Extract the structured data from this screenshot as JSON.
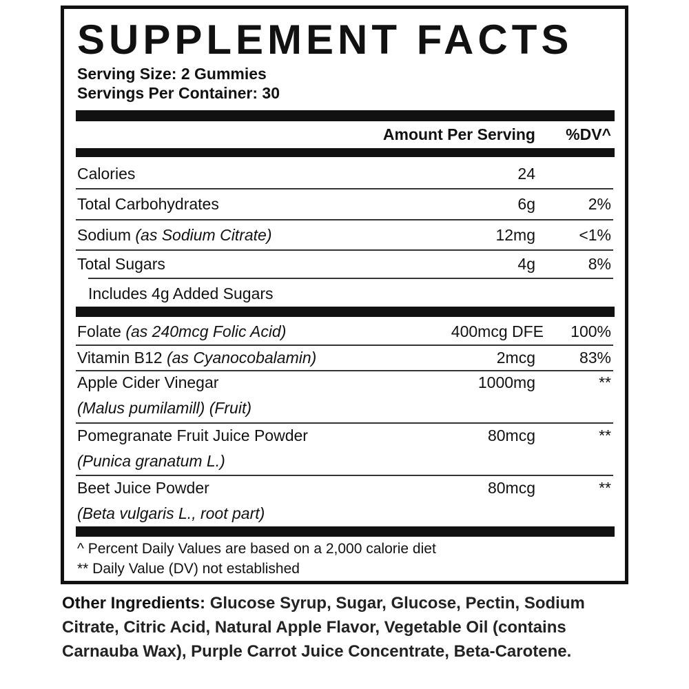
{
  "title": "SUPPLEMENT FACTS",
  "serving_size": "Serving Size: 2 Gummies",
  "servings_per_container": "Servings Per Container: 30",
  "header": {
    "amount": "Amount Per Serving",
    "dv": "%DV^"
  },
  "rows": [
    {
      "name": "Calories",
      "amount": "24",
      "dv": ""
    },
    {
      "name": "Total Carbohydrates",
      "amount": "6g",
      "dv": "2%"
    },
    {
      "name": "Sodium",
      "source": "(as Sodium Citrate)",
      "amount": "12mg",
      "dv": "<1%"
    },
    {
      "name": "Total Sugars",
      "amount": "4g",
      "dv": "8%"
    },
    {
      "name": "Includes 4g Added Sugars",
      "amount": "",
      "dv": ""
    },
    {
      "name": "Folate",
      "source": "(as 240mcg Folic Acid)",
      "amount": "400mcg DFE",
      "dv": "100%"
    },
    {
      "name": "Vitamin B12",
      "source": "(as Cyanocobalamin)",
      "amount": "2mcg",
      "dv": "83%"
    },
    {
      "name": "Apple Cider Vinegar",
      "source": "(Malus pumilamill) (Fruit)",
      "amount": "1000mg",
      "dv": "**"
    },
    {
      "name": "Pomegranate Fruit Juice Powder",
      "source": "(Punica granatum L.)",
      "amount": "80mcg",
      "dv": "**"
    },
    {
      "name": "Beet Juice Powder",
      "source": "(Beta vulgaris L., root part)",
      "amount": "80mcg",
      "dv": "**"
    }
  ],
  "footnotes": [
    "^ Percent Daily Values are based on a 2,000 calorie diet",
    "** Daily Value (DV) not established"
  ],
  "other_ingredients": {
    "label": "Other Ingredients:",
    "list": "Glucose Syrup, Sugar, Glucose, Pectin, Sodium Citrate, Citric Acid, Natural Apple Flavor, Vegetable Oil (contains Carnauba Wax), Purple Carrot Juice Concentrate, Beta-Carotene."
  }
}
